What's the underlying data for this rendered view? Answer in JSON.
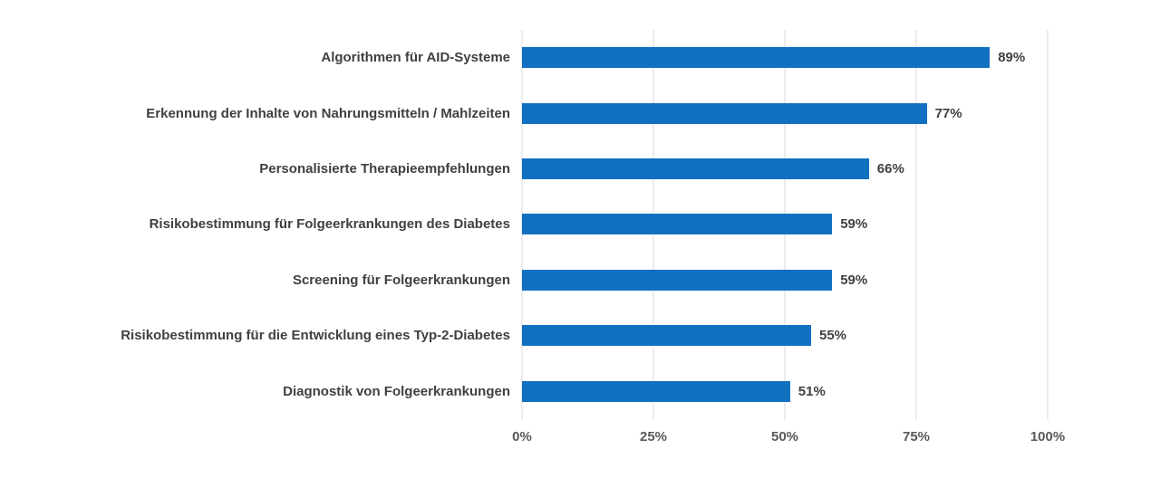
{
  "chart_data": {
    "type": "bar",
    "orientation": "horizontal",
    "title": "",
    "xlabel": "",
    "ylabel": "",
    "categories": [
      "Algorithmen für AID-Systeme",
      "Erkennung der Inhalte von Nahrungsmitteln / Mahlzeiten",
      "Personalisierte Therapieempfehlungen",
      "Risikobestimmung für Folgeerkrankungen des Diabetes",
      "Screening für Folgeerkrankungen",
      "Risikobestimmung für die Entwicklung eines Typ-2-Diabetes",
      "Diagnostik von Folgeerkrankungen"
    ],
    "values": [
      89,
      77,
      66,
      59,
      59,
      55,
      51
    ],
    "value_labels": [
      "89%",
      "77%",
      "66%",
      "59%",
      "59%",
      "55%",
      "51%"
    ],
    "xlim": [
      0,
      100
    ],
    "x_tick_values": [
      0,
      25,
      50,
      75,
      100
    ],
    "x_tick_labels": [
      "0%",
      "25%",
      "50%",
      "75%",
      "100%"
    ],
    "grid": true,
    "legend": false,
    "colors": {
      "bar": "#1170c0",
      "category_label": "#404040",
      "value_label": "#404040",
      "axis_tick_label": "#595959",
      "gridline": "#d9d9d9",
      "background": "#ffffff"
    }
  }
}
